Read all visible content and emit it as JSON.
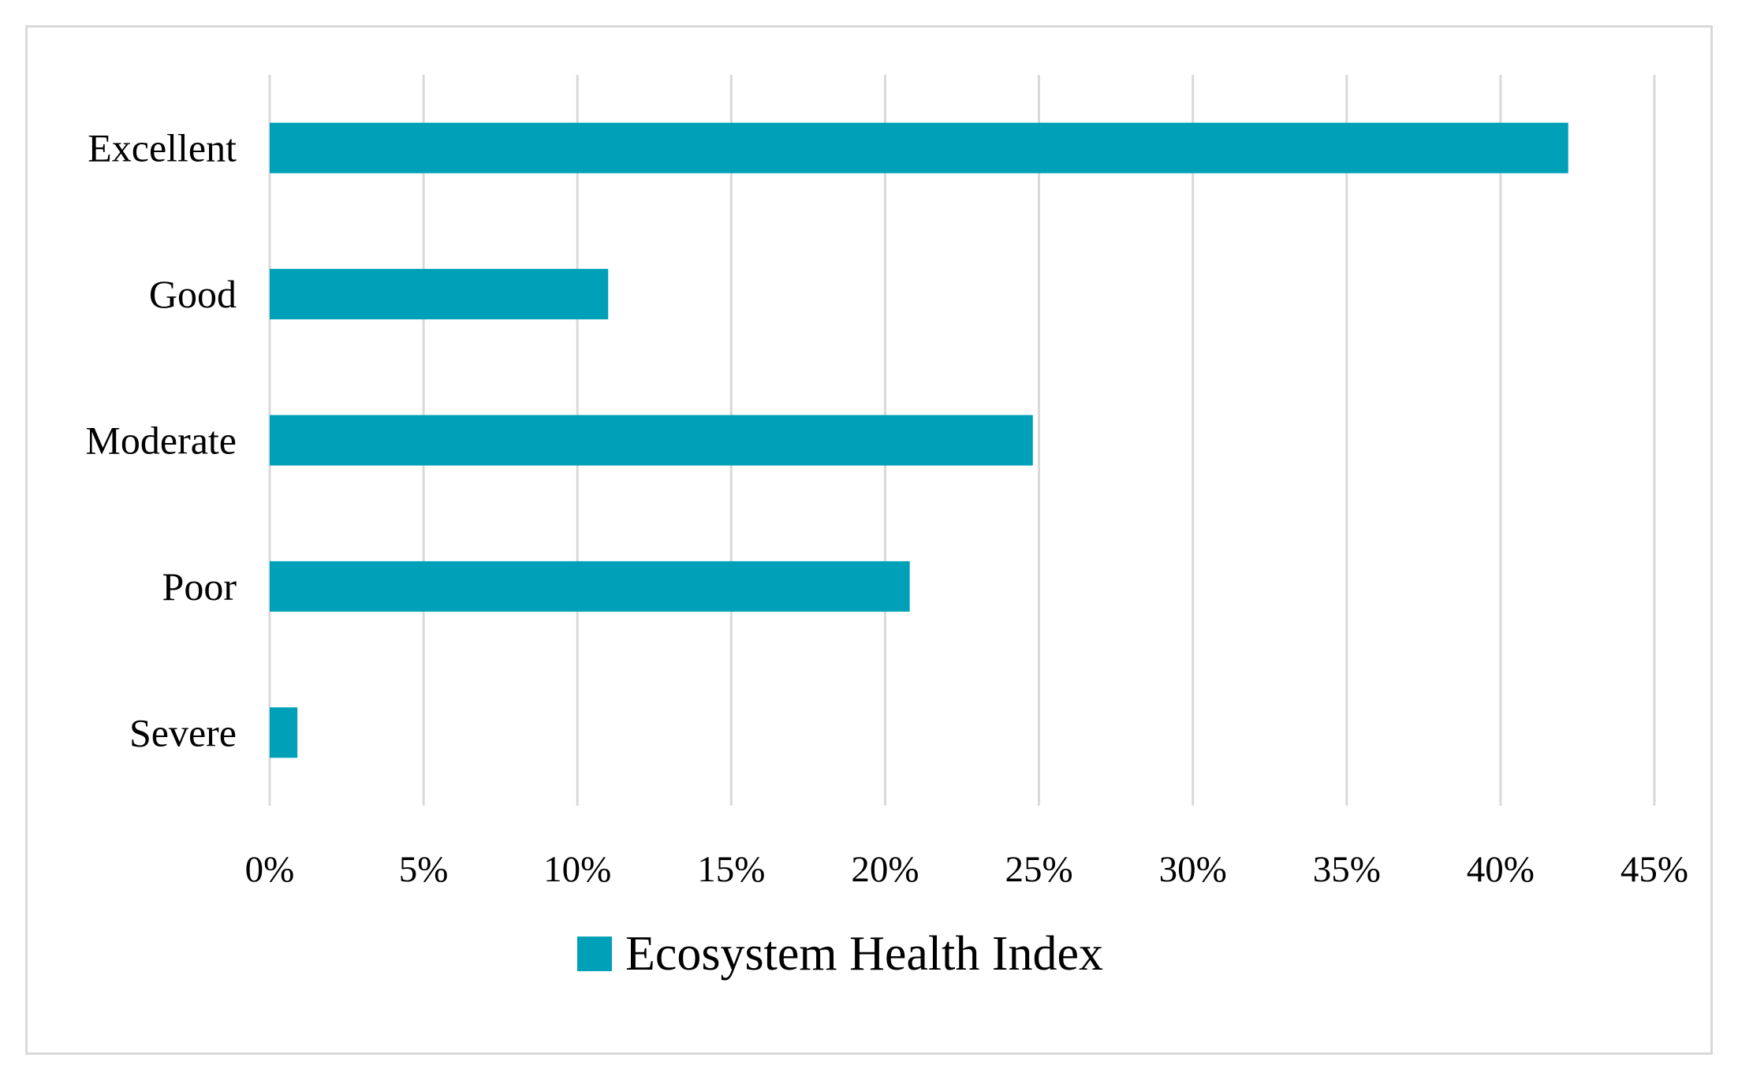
{
  "chart_data": {
    "type": "bar",
    "orientation": "horizontal",
    "categories": [
      "Excellent",
      "Good",
      "Moderate",
      "Poor",
      "Severe"
    ],
    "series": [
      {
        "name": "Ecosystem Health Index",
        "values": [
          42.2,
          11.0,
          24.8,
          20.8,
          0.9
        ],
        "color": "#00a0b8"
      }
    ],
    "xlim": [
      0,
      45
    ],
    "x_ticks": [
      "0%",
      "5%",
      "10%",
      "15%",
      "20%",
      "25%",
      "30%",
      "35%",
      "40%",
      "45%"
    ],
    "grid": "vertical",
    "legend": "bottom",
    "title": "",
    "xlabel": "",
    "ylabel": ""
  }
}
